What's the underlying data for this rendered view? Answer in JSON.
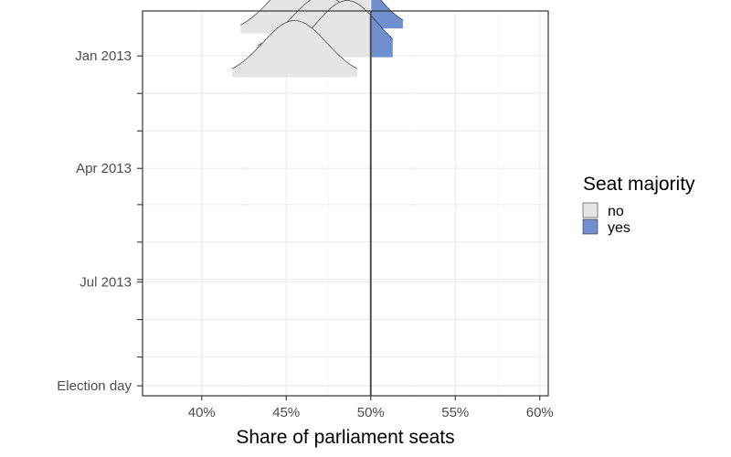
{
  "chart_data": {
    "type": "ridgeline",
    "xlabel": "Share of parliament seats",
    "ylabel": "",
    "xlim": [
      0.365,
      0.605
    ],
    "x_ticks": [
      {
        "value": 0.4,
        "label": "40%"
      },
      {
        "value": 0.45,
        "label": "45%"
      },
      {
        "value": 0.5,
        "label": "50%"
      },
      {
        "value": 0.55,
        "label": "55%"
      },
      {
        "value": 0.6,
        "label": "60%"
      }
    ],
    "y_ticks": [
      {
        "date": "2013-01-01",
        "label": "Jan 2013"
      },
      {
        "date": "2013-04-01",
        "label": "Apr 2013"
      },
      {
        "date": "2013-07-01",
        "label": "Jul 2013"
      },
      {
        "date": "2013-09-22",
        "label": "Election day"
      }
    ],
    "y_minor_ticks": [
      "2013-01-31",
      "2013-03-02",
      "2013-04-30",
      "2013-05-30",
      "2013-06-29",
      "2013-07-31",
      "2013-08-30"
    ],
    "ylim_dates": [
      "2012-11-26",
      "2013-09-30"
    ],
    "threshold": 0.5,
    "fill_colors": {
      "no": "#e5e5e5",
      "yes": "#6f8fcf"
    },
    "grid": true,
    "legend": {
      "title": "Seat majority",
      "position": "right",
      "entries": [
        {
          "key": "no",
          "label": "no"
        },
        {
          "key": "yes",
          "label": "yes"
        }
      ]
    },
    "series": [
      {
        "date": "2012-12-14",
        "mean": 0.46,
        "sd": 0.019,
        "xmin": 0.423,
        "xmax": 0.5
      },
      {
        "date": "2012-12-10",
        "mean": 0.486,
        "sd": 0.017,
        "xmin": 0.45,
        "xmax": 0.519
      },
      {
        "date": "2012-12-29",
        "mean": 0.472,
        "sd": 0.019,
        "xmin": 0.433,
        "xmax": 0.511
      },
      {
        "date": "2013-01-02",
        "mean": 0.486,
        "sd": 0.018,
        "xmin": 0.448,
        "xmax": 0.513
      },
      {
        "date": "2013-01-18",
        "mean": 0.455,
        "sd": 0.019,
        "xmin": 0.418,
        "xmax": 0.492
      }
    ]
  }
}
